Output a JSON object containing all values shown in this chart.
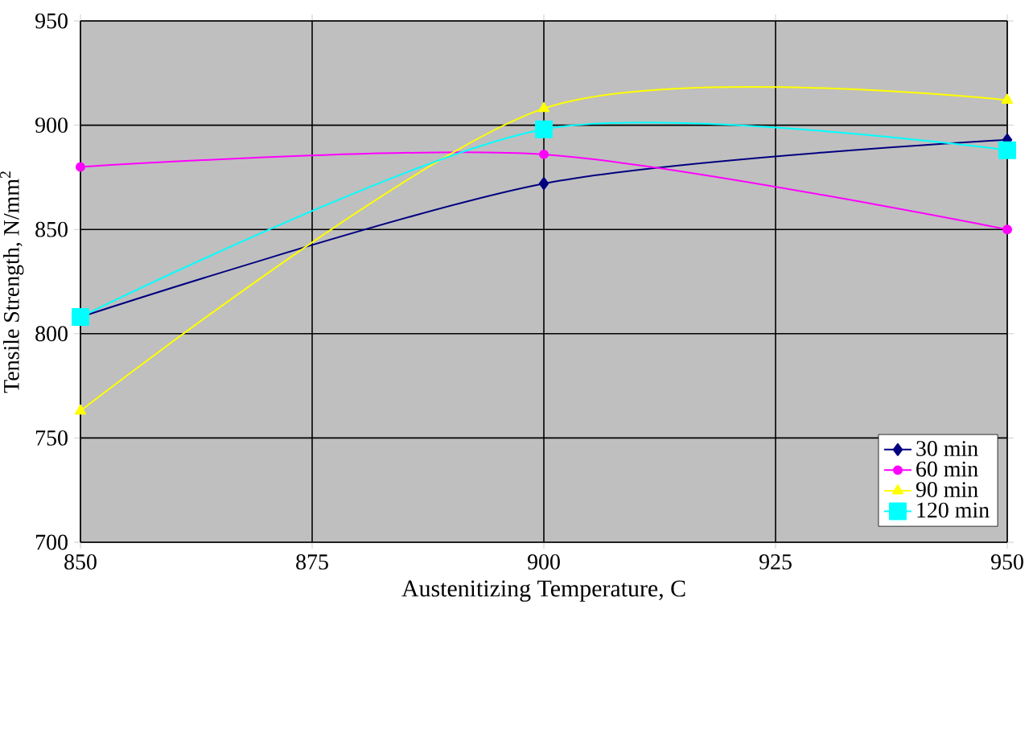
{
  "chart_data": {
    "type": "line",
    "xlabel": "Austenitizing Temperature, C",
    "ylabel": "Tensile Strength, N/mm$^{2}$",
    "x": [
      850,
      900,
      950
    ],
    "series": [
      {
        "name": "30 min",
        "color": "#000080",
        "marker": "diamond",
        "values": [
          808,
          872,
          893
        ]
      },
      {
        "name": "60 min",
        "color": "#ff00ff",
        "marker": "circle",
        "values": [
          880,
          886,
          850
        ]
      },
      {
        "name": "90 min",
        "color": "#ffff00",
        "marker": "triangle",
        "values": [
          763,
          908,
          912
        ]
      },
      {
        "name": "120 min",
        "color": "#00ffff",
        "marker": "square",
        "values": [
          808,
          898,
          888
        ]
      }
    ],
    "xlim": [
      850,
      950
    ],
    "xticks": [
      850,
      875,
      900,
      925,
      950
    ],
    "ylim": [
      700,
      950
    ],
    "yticks": [
      700,
      750,
      800,
      850,
      900,
      950
    ],
    "grid": true,
    "legend": "bottom right",
    "line_style": "solid"
  }
}
